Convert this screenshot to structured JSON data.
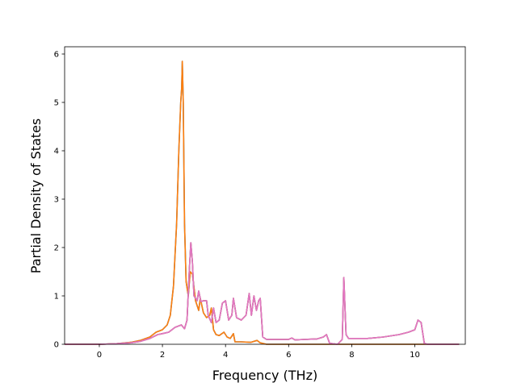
{
  "chart_data": {
    "type": "line",
    "title": "",
    "xlabel": "Frequency (THz)",
    "ylabel": "Partial Density of States",
    "xlim": [
      -1.1,
      11.6
    ],
    "ylim": [
      0,
      6.15
    ],
    "grid": false,
    "xticks": [
      0,
      2,
      4,
      6,
      8,
      10
    ],
    "yticks": [
      0,
      1,
      2,
      3,
      4,
      5,
      6
    ],
    "x_tick_labels": [
      "0",
      "2",
      "4",
      "6",
      "8",
      "10"
    ],
    "y_tick_labels": [
      "0",
      "1",
      "2",
      "3",
      "4",
      "5",
      "6"
    ],
    "series": [
      {
        "color": "#1f77b4",
        "points": [
          [
            -1.1,
            0
          ],
          [
            -0.5,
            0
          ],
          [
            0,
            0
          ],
          [
            0.5,
            0.01
          ],
          [
            1.0,
            0.04
          ],
          [
            1.3,
            0.08
          ],
          [
            1.6,
            0.15
          ],
          [
            1.8,
            0.25
          ],
          [
            2.0,
            0.3
          ],
          [
            2.15,
            0.4
          ],
          [
            2.25,
            0.6
          ],
          [
            2.35,
            1.2
          ],
          [
            2.45,
            2.5
          ],
          [
            2.52,
            4.0
          ],
          [
            2.58,
            5.0
          ],
          [
            2.61,
            5.3
          ],
          [
            2.63,
            5.85
          ],
          [
            2.66,
            5.0
          ],
          [
            2.7,
            2.5
          ],
          [
            2.75,
            1.3
          ],
          [
            2.82,
            1.0
          ],
          [
            2.88,
            1.5
          ],
          [
            2.95,
            1.45
          ],
          [
            3.05,
            0.9
          ],
          [
            3.15,
            0.7
          ],
          [
            3.2,
            0.95
          ],
          [
            3.3,
            0.65
          ],
          [
            3.4,
            0.55
          ],
          [
            3.5,
            0.6
          ],
          [
            3.55,
            0.75
          ],
          [
            3.62,
            0.3
          ],
          [
            3.7,
            0.2
          ],
          [
            3.8,
            0.18
          ],
          [
            3.95,
            0.25
          ],
          [
            4.05,
            0.15
          ],
          [
            4.15,
            0.12
          ],
          [
            4.25,
            0.22
          ],
          [
            4.3,
            0.05
          ],
          [
            4.5,
            0.05
          ],
          [
            4.8,
            0.04
          ],
          [
            5.0,
            0.08
          ],
          [
            5.1,
            0.03
          ],
          [
            5.3,
            0
          ],
          [
            6,
            0
          ],
          [
            7,
            0
          ],
          [
            8,
            0
          ],
          [
            9,
            0
          ],
          [
            10,
            0
          ],
          [
            10.3,
            0
          ],
          [
            11.4,
            0
          ]
        ]
      },
      {
        "color": "#ff7f0e",
        "points": [
          [
            -1.1,
            0
          ],
          [
            -0.5,
            0
          ],
          [
            0,
            0
          ],
          [
            0.5,
            0.01
          ],
          [
            1.0,
            0.04
          ],
          [
            1.3,
            0.08
          ],
          [
            1.6,
            0.15
          ],
          [
            1.8,
            0.25
          ],
          [
            2.0,
            0.3
          ],
          [
            2.15,
            0.4
          ],
          [
            2.25,
            0.6
          ],
          [
            2.35,
            1.2
          ],
          [
            2.45,
            2.5
          ],
          [
            2.52,
            4.0
          ],
          [
            2.58,
            5.0
          ],
          [
            2.61,
            5.3
          ],
          [
            2.63,
            5.85
          ],
          [
            2.66,
            5.0
          ],
          [
            2.7,
            2.5
          ],
          [
            2.75,
            1.3
          ],
          [
            2.82,
            1.0
          ],
          [
            2.88,
            1.5
          ],
          [
            2.95,
            1.45
          ],
          [
            3.05,
            0.9
          ],
          [
            3.15,
            0.7
          ],
          [
            3.2,
            0.95
          ],
          [
            3.3,
            0.65
          ],
          [
            3.4,
            0.55
          ],
          [
            3.5,
            0.6
          ],
          [
            3.55,
            0.75
          ],
          [
            3.62,
            0.3
          ],
          [
            3.7,
            0.2
          ],
          [
            3.8,
            0.18
          ],
          [
            3.95,
            0.25
          ],
          [
            4.05,
            0.15
          ],
          [
            4.15,
            0.12
          ],
          [
            4.25,
            0.22
          ],
          [
            4.3,
            0.05
          ],
          [
            4.5,
            0.05
          ],
          [
            4.8,
            0.04
          ],
          [
            5.0,
            0.08
          ],
          [
            5.1,
            0.03
          ],
          [
            5.3,
            0
          ],
          [
            6,
            0
          ],
          [
            7,
            0
          ],
          [
            8,
            0
          ],
          [
            9,
            0
          ],
          [
            10,
            0
          ],
          [
            10.3,
            0
          ],
          [
            11.4,
            0
          ]
        ]
      },
      {
        "color": "#d62728",
        "points": [
          [
            -1.1,
            0
          ],
          [
            -0.5,
            0
          ],
          [
            0,
            0
          ],
          [
            0.5,
            0.01
          ],
          [
            1.0,
            0.03
          ],
          [
            1.3,
            0.06
          ],
          [
            1.6,
            0.12
          ],
          [
            1.85,
            0.2
          ],
          [
            2.0,
            0.22
          ],
          [
            2.2,
            0.25
          ],
          [
            2.4,
            0.35
          ],
          [
            2.6,
            0.4
          ],
          [
            2.7,
            0.32
          ],
          [
            2.78,
            0.5
          ],
          [
            2.85,
            1.5
          ],
          [
            2.9,
            2.1
          ],
          [
            2.95,
            1.7
          ],
          [
            3.0,
            1.0
          ],
          [
            3.1,
            0.9
          ],
          [
            3.15,
            1.1
          ],
          [
            3.22,
            0.88
          ],
          [
            3.3,
            0.9
          ],
          [
            3.4,
            0.9
          ],
          [
            3.45,
            0.6
          ],
          [
            3.55,
            0.45
          ],
          [
            3.62,
            0.75
          ],
          [
            3.7,
            0.45
          ],
          [
            3.8,
            0.5
          ],
          [
            3.9,
            0.85
          ],
          [
            4.0,
            0.9
          ],
          [
            4.1,
            0.5
          ],
          [
            4.2,
            0.6
          ],
          [
            4.25,
            0.95
          ],
          [
            4.35,
            0.55
          ],
          [
            4.5,
            0.5
          ],
          [
            4.65,
            0.6
          ],
          [
            4.75,
            1.05
          ],
          [
            4.82,
            0.6
          ],
          [
            4.9,
            1.0
          ],
          [
            4.98,
            0.7
          ],
          [
            5.05,
            0.9
          ],
          [
            5.1,
            0.95
          ],
          [
            5.18,
            0.15
          ],
          [
            5.3,
            0.1
          ],
          [
            5.6,
            0.1
          ],
          [
            6.0,
            0.1
          ],
          [
            6.1,
            0.13
          ],
          [
            6.2,
            0.09
          ],
          [
            6.5,
            0.1
          ],
          [
            6.9,
            0.11
          ],
          [
            7.1,
            0.15
          ],
          [
            7.2,
            0.2
          ],
          [
            7.3,
            0.02
          ],
          [
            7.55,
            0
          ],
          [
            7.7,
            0.1
          ],
          [
            7.75,
            1.38
          ],
          [
            7.82,
            0.2
          ],
          [
            7.9,
            0.12
          ],
          [
            8.5,
            0.12
          ],
          [
            9.0,
            0.15
          ],
          [
            9.5,
            0.2
          ],
          [
            9.8,
            0.25
          ],
          [
            10.0,
            0.3
          ],
          [
            10.1,
            0.5
          ],
          [
            10.2,
            0.45
          ],
          [
            10.3,
            0.02
          ],
          [
            10.4,
            0
          ],
          [
            11.4,
            0
          ]
        ]
      },
      {
        "color": "#7f7f7f",
        "points": [
          [
            -1.1,
            0
          ],
          [
            -0.5,
            0
          ],
          [
            0,
            0
          ],
          [
            0.5,
            0.01
          ],
          [
            1.0,
            0.03
          ],
          [
            1.3,
            0.06
          ],
          [
            1.6,
            0.12
          ],
          [
            1.85,
            0.2
          ],
          [
            2.0,
            0.22
          ],
          [
            2.2,
            0.25
          ],
          [
            2.4,
            0.35
          ],
          [
            2.6,
            0.4
          ],
          [
            2.7,
            0.32
          ],
          [
            2.78,
            0.5
          ],
          [
            2.85,
            1.5
          ],
          [
            2.9,
            2.1
          ],
          [
            2.95,
            1.7
          ],
          [
            3.0,
            1.0
          ],
          [
            3.1,
            0.9
          ],
          [
            3.15,
            1.1
          ],
          [
            3.22,
            0.88
          ],
          [
            3.3,
            0.9
          ],
          [
            3.4,
            0.9
          ],
          [
            3.45,
            0.6
          ],
          [
            3.55,
            0.45
          ],
          [
            3.62,
            0.75
          ],
          [
            3.7,
            0.45
          ],
          [
            3.8,
            0.5
          ],
          [
            3.9,
            0.85
          ],
          [
            4.0,
            0.9
          ],
          [
            4.1,
            0.5
          ],
          [
            4.2,
            0.6
          ],
          [
            4.25,
            0.95
          ],
          [
            4.35,
            0.55
          ],
          [
            4.5,
            0.5
          ],
          [
            4.65,
            0.6
          ],
          [
            4.75,
            1.05
          ],
          [
            4.82,
            0.6
          ],
          [
            4.9,
            1.0
          ],
          [
            4.98,
            0.7
          ],
          [
            5.05,
            0.9
          ],
          [
            5.1,
            0.95
          ],
          [
            5.18,
            0.15
          ],
          [
            5.3,
            0.1
          ],
          [
            5.6,
            0.1
          ],
          [
            6.0,
            0.1
          ],
          [
            6.1,
            0.13
          ],
          [
            6.2,
            0.09
          ],
          [
            6.5,
            0.1
          ],
          [
            6.9,
            0.11
          ],
          [
            7.1,
            0.15
          ],
          [
            7.2,
            0.2
          ],
          [
            7.3,
            0.02
          ],
          [
            7.55,
            0
          ],
          [
            7.7,
            0.1
          ],
          [
            7.75,
            1.38
          ],
          [
            7.82,
            0.2
          ],
          [
            7.9,
            0.12
          ],
          [
            8.5,
            0.12
          ],
          [
            9.0,
            0.15
          ],
          [
            9.5,
            0.2
          ],
          [
            9.8,
            0.25
          ],
          [
            10.0,
            0.3
          ],
          [
            10.1,
            0.5
          ],
          [
            10.2,
            0.45
          ],
          [
            10.3,
            0.02
          ],
          [
            10.4,
            0
          ],
          [
            11.4,
            0
          ]
        ]
      },
      {
        "color": "#e377c2",
        "points": [
          [
            -1.1,
            0
          ],
          [
            -0.5,
            0
          ],
          [
            0,
            0
          ],
          [
            0.5,
            0.01
          ],
          [
            1.0,
            0.03
          ],
          [
            1.3,
            0.06
          ],
          [
            1.6,
            0.12
          ],
          [
            1.85,
            0.2
          ],
          [
            2.0,
            0.22
          ],
          [
            2.2,
            0.25
          ],
          [
            2.4,
            0.35
          ],
          [
            2.6,
            0.4
          ],
          [
            2.7,
            0.32
          ],
          [
            2.78,
            0.5
          ],
          [
            2.85,
            1.5
          ],
          [
            2.9,
            2.1
          ],
          [
            2.95,
            1.7
          ],
          [
            3.0,
            1.0
          ],
          [
            3.1,
            0.9
          ],
          [
            3.15,
            1.1
          ],
          [
            3.22,
            0.88
          ],
          [
            3.3,
            0.9
          ],
          [
            3.4,
            0.9
          ],
          [
            3.45,
            0.6
          ],
          [
            3.55,
            0.45
          ],
          [
            3.62,
            0.75
          ],
          [
            3.7,
            0.45
          ],
          [
            3.8,
            0.5
          ],
          [
            3.9,
            0.85
          ],
          [
            4.0,
            0.9
          ],
          [
            4.1,
            0.5
          ],
          [
            4.2,
            0.6
          ],
          [
            4.25,
            0.95
          ],
          [
            4.35,
            0.55
          ],
          [
            4.5,
            0.5
          ],
          [
            4.65,
            0.6
          ],
          [
            4.75,
            1.05
          ],
          [
            4.82,
            0.6
          ],
          [
            4.9,
            1.0
          ],
          [
            4.98,
            0.7
          ],
          [
            5.05,
            0.9
          ],
          [
            5.1,
            0.95
          ],
          [
            5.18,
            0.15
          ],
          [
            5.3,
            0.1
          ],
          [
            5.6,
            0.1
          ],
          [
            6.0,
            0.1
          ],
          [
            6.1,
            0.13
          ],
          [
            6.2,
            0.09
          ],
          [
            6.5,
            0.1
          ],
          [
            6.9,
            0.11
          ],
          [
            7.1,
            0.15
          ],
          [
            7.2,
            0.2
          ],
          [
            7.3,
            0.02
          ],
          [
            7.55,
            0
          ],
          [
            7.7,
            0.1
          ],
          [
            7.75,
            1.38
          ],
          [
            7.82,
            0.2
          ],
          [
            7.9,
            0.12
          ],
          [
            8.5,
            0.12
          ],
          [
            9.0,
            0.15
          ],
          [
            9.5,
            0.2
          ],
          [
            9.8,
            0.25
          ],
          [
            10.0,
            0.3
          ],
          [
            10.1,
            0.5
          ],
          [
            10.2,
            0.45
          ],
          [
            10.3,
            0.02
          ],
          [
            10.4,
            0
          ],
          [
            11.4,
            0
          ]
        ]
      }
    ]
  }
}
